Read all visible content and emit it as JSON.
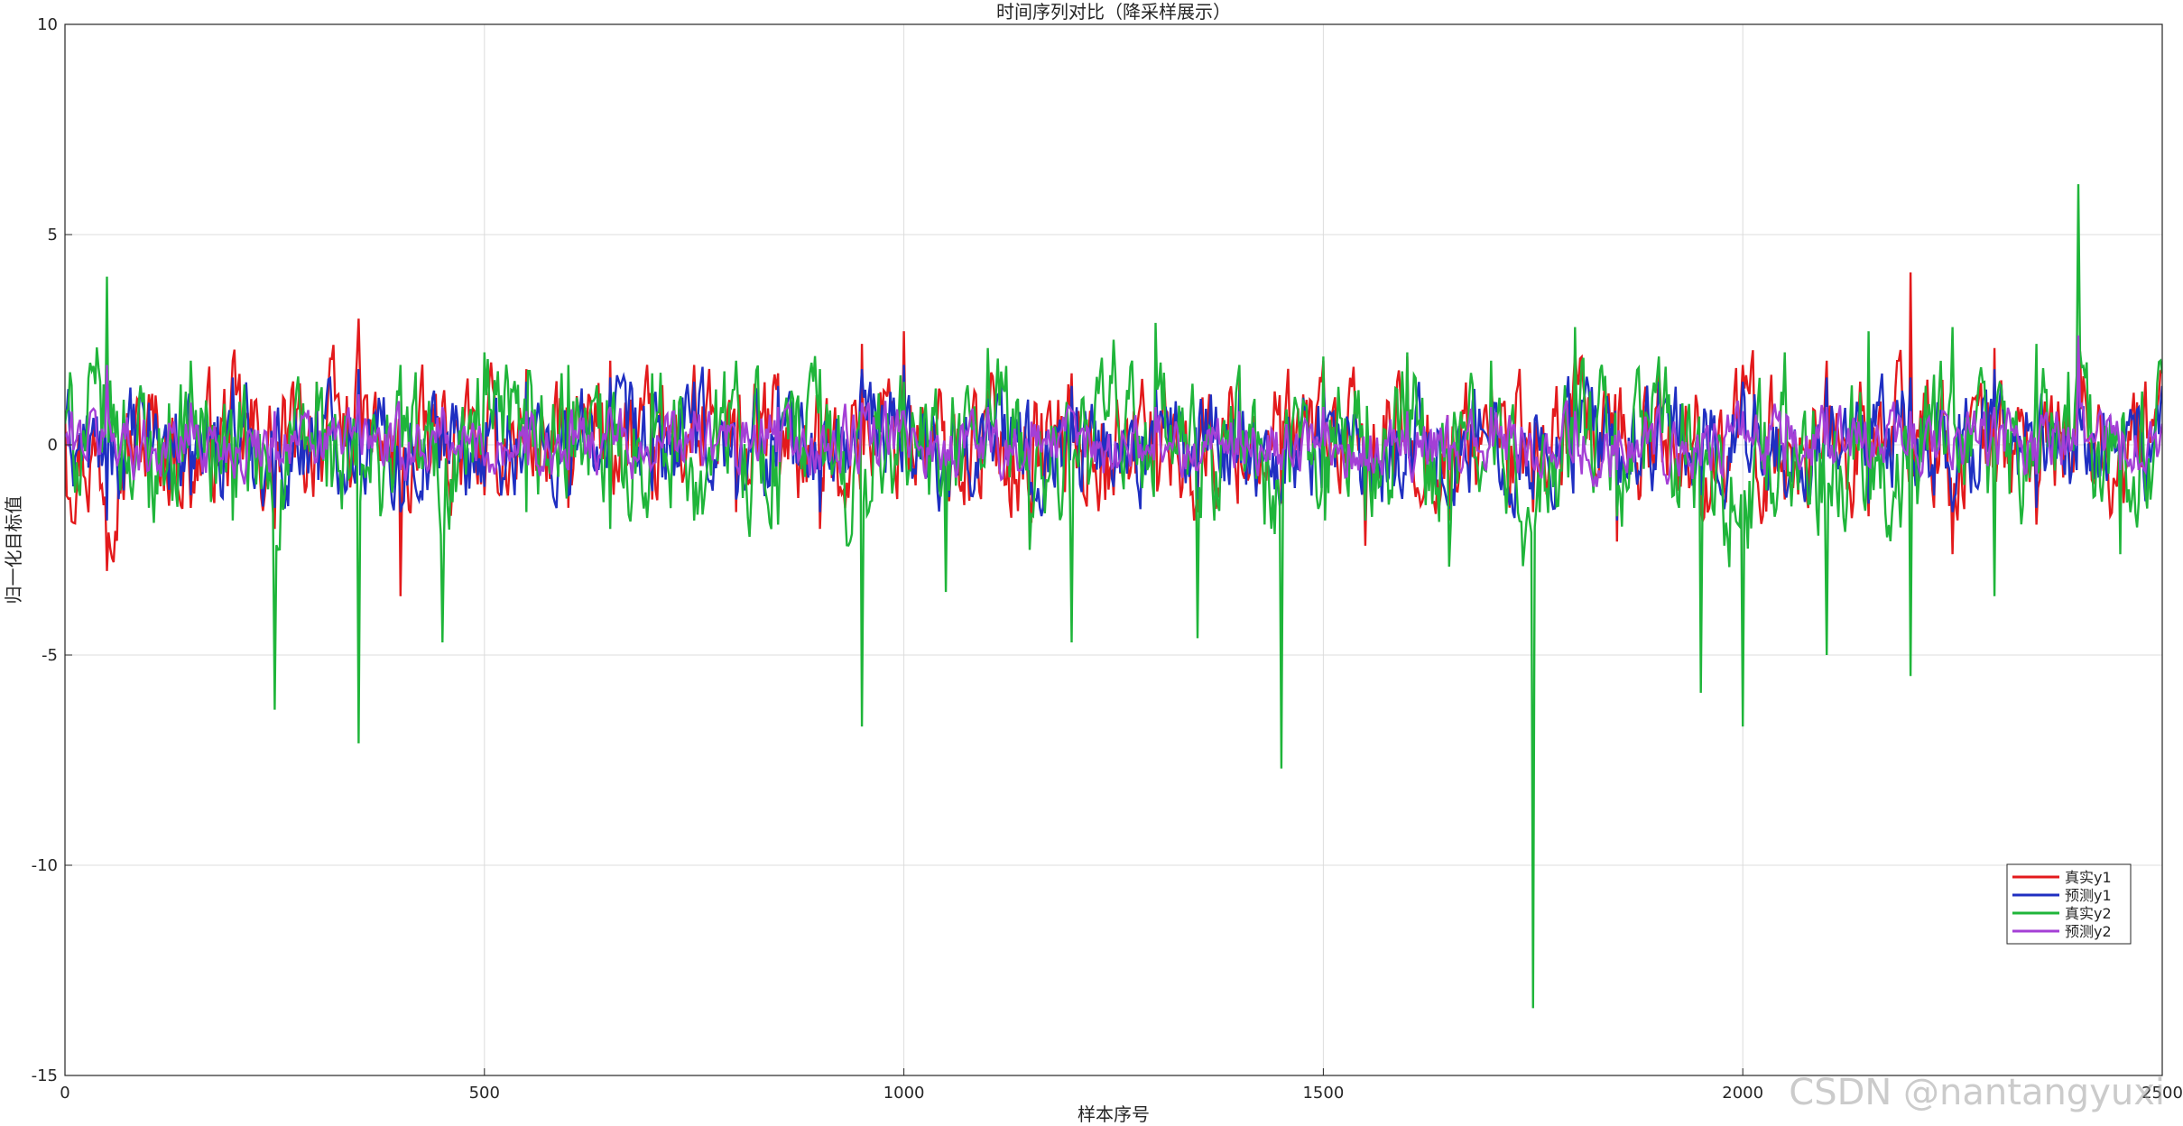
{
  "chart_data": {
    "type": "line",
    "title": "时间序列对比（降采样展示）",
    "xlabel": "样本序号",
    "ylabel": "归一化目标值",
    "xlim": [
      0,
      2500
    ],
    "ylim": [
      -15,
      10
    ],
    "x_ticks": [
      0,
      500,
      1000,
      1500,
      2000,
      2500
    ],
    "y_ticks": [
      10,
      5,
      0,
      -5,
      -10,
      -15
    ],
    "grid": true,
    "legend_position": "bottom-right",
    "series": [
      {
        "name": "真实y1",
        "color": "#e31a1c",
        "amplitude": 1.2,
        "x": [
          0,
          50,
          100,
          150,
          200,
          250,
          300,
          350,
          400,
          450,
          500,
          550,
          600,
          650,
          700,
          750,
          800,
          850,
          900,
          950,
          1000,
          1050,
          1100,
          1150,
          1200,
          1250,
          1300,
          1350,
          1400,
          1450,
          1500,
          1550,
          1600,
          1650,
          1700,
          1750,
          1800,
          1850,
          1900,
          1950,
          2000,
          2050,
          2100,
          2150,
          2200,
          2250,
          2300,
          2350,
          2400,
          2450,
          2500
        ],
        "y": [
          0.8,
          -3.0,
          1.2,
          -1.5,
          2.0,
          -2.0,
          1.5,
          3.0,
          -3.6,
          1.0,
          -1.2,
          1.8,
          -1.5,
          2.0,
          -1.3,
          1.9,
          -1.6,
          1.7,
          -2.0,
          2.4,
          2.7,
          -1.8,
          1.3,
          -1.4,
          1.7,
          -1.2,
          1.9,
          -1.6,
          1.6,
          -1.4,
          2.0,
          -2.4,
          2.1,
          -1.8,
          1.5,
          -1.6,
          2.2,
          -2.3,
          1.8,
          -1.5,
          1.9,
          -1.3,
          2.0,
          -1.7,
          4.1,
          -2.6,
          2.3,
          -1.9,
          2.1,
          -1.4,
          1.8
        ],
        "spikes": []
      },
      {
        "name": "预测y1",
        "color": "#1f2fc2",
        "amplitude": 1.0,
        "x": [
          0,
          50,
          100,
          150,
          200,
          250,
          300,
          350,
          400,
          450,
          500,
          550,
          600,
          650,
          700,
          750,
          800,
          850,
          900,
          950,
          1000,
          1050,
          1100,
          1150,
          1200,
          1250,
          1300,
          1350,
          1400,
          1450,
          1500,
          1550,
          1600,
          1650,
          1700,
          1750,
          1800,
          1850,
          1900,
          1950,
          2000,
          2050,
          2100,
          2150,
          2200,
          2250,
          2300,
          2350,
          2400,
          2450,
          2500
        ],
        "y": [
          0.6,
          -1.8,
          1.0,
          -1.2,
          1.6,
          -1.5,
          1.2,
          1.8,
          -1.6,
          0.8,
          -1.0,
          1.5,
          -1.2,
          1.6,
          -1.1,
          1.5,
          -1.3,
          1.4,
          -1.6,
          1.8,
          1.9,
          -1.4,
          1.1,
          -1.2,
          1.4,
          -1.0,
          1.6,
          -1.3,
          1.3,
          -1.2,
          1.6,
          -1.8,
          1.7,
          -1.5,
          1.2,
          -1.3,
          1.7,
          -1.8,
          1.5,
          -1.2,
          1.5,
          -1.1,
          1.6,
          -1.4,
          1.6,
          -1.6,
          1.8,
          -1.5,
          1.7,
          -1.1,
          1.4
        ],
        "spikes": []
      },
      {
        "name": "真实y2",
        "color": "#1fb53a",
        "amplitude": 1.3,
        "x": [
          0,
          50,
          100,
          150,
          200,
          250,
          300,
          350,
          400,
          450,
          500,
          550,
          600,
          650,
          700,
          750,
          800,
          850,
          900,
          950,
          1000,
          1050,
          1100,
          1150,
          1200,
          1250,
          1300,
          1350,
          1400,
          1450,
          1500,
          1550,
          1600,
          1650,
          1700,
          1750,
          1800,
          1850,
          1900,
          1950,
          2000,
          2050,
          2100,
          2150,
          2200,
          2250,
          2300,
          2350,
          2400,
          2450,
          2500
        ],
        "y": [
          0.5,
          4.0,
          -1.5,
          2.0,
          -1.8,
          -6.3,
          1.5,
          -7.1,
          1.9,
          -4.7,
          2.2,
          -1.6,
          1.9,
          -2.0,
          1.7,
          -1.8,
          2.0,
          -1.9,
          1.8,
          -6.7,
          1.5,
          -3.5,
          2.3,
          -2.5,
          -4.7,
          2.5,
          2.9,
          -4.6,
          1.9,
          -7.7,
          2.1,
          -1.8,
          2.2,
          -2.9,
          2.0,
          -13.4,
          2.8,
          -1.7,
          2.1,
          -5.9,
          -6.7,
          2.2,
          -5.0,
          2.7,
          -5.5,
          2.8,
          -3.6,
          2.4,
          6.2,
          -2.6,
          1.7
        ],
        "spikes": []
      },
      {
        "name": "预测y2",
        "color": "#a43fd6",
        "amplitude": 0.6,
        "x": [
          0,
          50,
          100,
          150,
          200,
          250,
          300,
          350,
          400,
          450,
          500,
          550,
          600,
          650,
          700,
          750,
          800,
          850,
          900,
          950,
          1000,
          1050,
          1100,
          1150,
          1200,
          1250,
          1300,
          1350,
          1400,
          1450,
          1500,
          1550,
          1600,
          1650,
          1700,
          1750,
          1800,
          1850,
          1900,
          1950,
          2000,
          2050,
          2100,
          2150,
          2200,
          2250,
          2300,
          2350,
          2400,
          2450,
          2500
        ],
        "y": [
          0.2,
          1.9,
          -0.6,
          1.0,
          -0.5,
          0.8,
          -0.4,
          1.2,
          -0.6,
          0.9,
          -0.5,
          0.8,
          -0.6,
          0.9,
          -0.5,
          0.8,
          -0.5,
          0.9,
          -0.6,
          1.0,
          0.8,
          -0.5,
          0.9,
          -0.6,
          0.8,
          -0.5,
          0.9,
          -0.6,
          0.8,
          -0.6,
          0.9,
          -0.5,
          0.8,
          -0.6,
          0.9,
          -0.5,
          0.8,
          -0.6,
          0.9,
          -0.5,
          0.8,
          -0.6,
          0.9,
          -0.5,
          0.8,
          -0.6,
          0.9,
          -0.7,
          2.6,
          -0.6,
          0.5
        ],
        "spikes": []
      }
    ]
  },
  "watermark": "CSDN @nantangyuxi"
}
